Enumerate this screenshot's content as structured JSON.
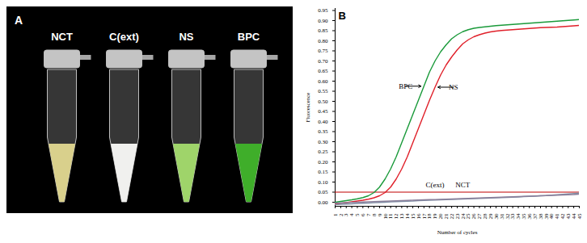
{
  "chart_data": {
    "type": "line",
    "panel_label": "B",
    "x_label": "Number of cycles",
    "y_label": "Fluorescence",
    "x": [
      1,
      2,
      3,
      4,
      5,
      6,
      7,
      8,
      9,
      10,
      11,
      12,
      13,
      14,
      15,
      16,
      17,
      18,
      19,
      20,
      21,
      22,
      23,
      24,
      25,
      26,
      27,
      28,
      29,
      30,
      31,
      32,
      33,
      34,
      35,
      36,
      37,
      38,
      39,
      40,
      41,
      42,
      43,
      44,
      45
    ],
    "xlim": [
      1,
      45
    ],
    "xticks": [
      1,
      2,
      3,
      4,
      5,
      6,
      7,
      8,
      9,
      10,
      11,
      12,
      13,
      14,
      15,
      16,
      17,
      18,
      19,
      20,
      21,
      22,
      23,
      24,
      25,
      26,
      27,
      28,
      29,
      30,
      31,
      32,
      33,
      34,
      35,
      36,
      37,
      38,
      39,
      40,
      41,
      42,
      43,
      44,
      45
    ],
    "ylim": [
      -0.02,
      0.96
    ],
    "yticks": [
      {
        "value": 0,
        "label": "0.00"
      },
      0.05,
      {
        "value": 0.1,
        "label": "0.10"
      },
      0.15,
      {
        "value": 0.2,
        "label": "0.20"
      },
      0.25,
      {
        "value": 0.3,
        "label": "0.30"
      },
      0.35,
      {
        "value": 0.4,
        "label": "0.40"
      },
      0.45,
      {
        "value": 0.5,
        "label": "0.50"
      },
      0.55,
      {
        "value": 0.6,
        "label": "0.60"
      },
      0.65,
      {
        "value": 0.7,
        "label": "0.70"
      },
      0.75,
      {
        "value": 0.8,
        "label": "0.80"
      },
      0.85,
      {
        "value": 0.9,
        "label": "0.90"
      },
      0.95
    ],
    "grid": false,
    "threshold": {
      "value": 0.05,
      "color": "#c00000"
    },
    "series": [
      {
        "name": "BPC",
        "color": "#1a9a3a",
        "values": [
          0,
          0.004,
          0.008,
          0.012,
          0.017,
          0.023,
          0.032,
          0.048,
          0.075,
          0.115,
          0.165,
          0.225,
          0.295,
          0.365,
          0.435,
          0.505,
          0.575,
          0.645,
          0.7,
          0.745,
          0.78,
          0.81,
          0.83,
          0.845,
          0.855,
          0.862,
          0.866,
          0.869,
          0.872,
          0.875,
          0.877,
          0.879,
          0.881,
          0.883,
          0.885,
          0.887,
          0.889,
          0.891,
          0.893,
          0.895,
          0.897,
          0.899,
          0.901,
          0.903,
          0.905
        ]
      },
      {
        "name": "NS",
        "color": "#e0202a",
        "values": [
          -0.01,
          -0.006,
          -0.002,
          0.002,
          0.006,
          0.01,
          0.015,
          0.022,
          0.032,
          0.048,
          0.075,
          0.115,
          0.165,
          0.225,
          0.295,
          0.365,
          0.435,
          0.505,
          0.57,
          0.63,
          0.68,
          0.72,
          0.755,
          0.785,
          0.805,
          0.82,
          0.83,
          0.838,
          0.844,
          0.848,
          0.851,
          0.853,
          0.855,
          0.857,
          0.859,
          0.861,
          0.863,
          0.865,
          0.866,
          0.867,
          0.868,
          0.87,
          0.872,
          0.874,
          0.876
        ]
      },
      {
        "name": "C(ext)",
        "color": "#7f8fa6",
        "values": [
          -0.012,
          -0.01,
          -0.009,
          -0.008,
          -0.006,
          -0.005,
          -0.004,
          -0.002,
          -0.001,
          0,
          0.002,
          0.003,
          0.004,
          0.005,
          0.006,
          0.008,
          0.009,
          0.01,
          0.011,
          0.012,
          0.013,
          0.014,
          0.015,
          0.016,
          0.017,
          0.018,
          0.019,
          0.02,
          0.021,
          0.022,
          0.023,
          0.024,
          0.025,
          0.026,
          0.028,
          0.029,
          0.03,
          0.032,
          0.033,
          0.035,
          0.037,
          0.039,
          0.041,
          0.043,
          0.045
        ]
      },
      {
        "name": "NCT",
        "color": "#8a7f9a",
        "values": [
          -0.004,
          -0.003,
          -0.002,
          -0.001,
          0,
          0.001,
          0.002,
          0.003,
          0.004,
          0.005,
          0.006,
          0.007,
          0.008,
          0.009,
          0.01,
          0.011,
          0.012,
          0.013,
          0.013,
          0.014,
          0.015,
          0.016,
          0.017,
          0.018,
          0.019,
          0.02,
          0.021,
          0.022,
          0.023,
          0.024,
          0.025,
          0.026,
          0.027,
          0.028,
          0.029,
          0.03,
          0.031,
          0.032,
          0.033,
          0.034,
          0.035,
          0.036,
          0.037,
          0.038,
          0.04
        ]
      }
    ]
  },
  "photo": {
    "panel_label": "A",
    "tubes": [
      {
        "label": "NCT",
        "color": "#d9d08c"
      },
      {
        "label": "C(ext)",
        "color": "#f0f0ee"
      },
      {
        "label": "NS",
        "color": "#9fd46a"
      },
      {
        "label": "BPC",
        "color": "#3fae2a"
      }
    ]
  }
}
